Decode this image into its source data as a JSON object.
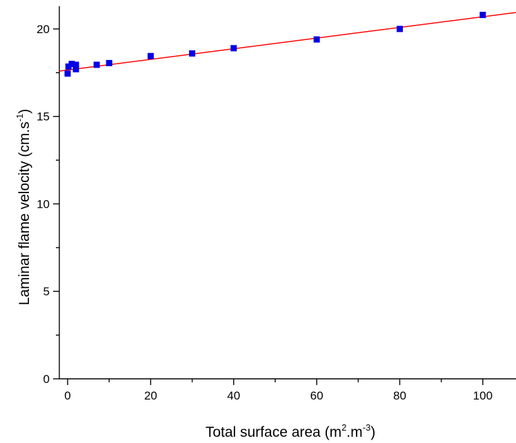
{
  "chart_data": {
    "type": "scatter",
    "title": "",
    "xlabel": {
      "base": "Total surface area (m",
      "sup1": "2",
      "mid": ".m",
      "sup2": "-3",
      "end": ")"
    },
    "ylabel": {
      "base": "Laminar flame velocity (cm.s",
      "sup": "-1",
      "end": ")"
    },
    "xlim": [
      -2,
      108
    ],
    "ylim": [
      0,
      21.3
    ],
    "x_ticks": [
      0,
      20,
      40,
      60,
      80,
      100
    ],
    "x_tick_labels": [
      "0",
      "20",
      "40",
      "60",
      "80",
      "100"
    ],
    "y_ticks": [
      0,
      5,
      10,
      15,
      20
    ],
    "y_tick_labels": [
      "0",
      "5",
      "10",
      "15",
      "20"
    ],
    "grid": false,
    "legend": "none",
    "series": [
      {
        "marker": "square",
        "color": "#0000e6",
        "points": [
          {
            "x": 0,
            "y": 17.45
          },
          {
            "x": 0.2,
            "y": 17.85
          },
          {
            "x": 1,
            "y": 18.0
          },
          {
            "x": 2,
            "y": 17.95
          },
          {
            "x": 2,
            "y": 17.7
          },
          {
            "x": 7,
            "y": 17.95
          },
          {
            "x": 10,
            "y": 18.05
          },
          {
            "x": 20,
            "y": 18.45
          },
          {
            "x": 30,
            "y": 18.6
          },
          {
            "x": 40,
            "y": 18.9
          },
          {
            "x": 60,
            "y": 19.4
          },
          {
            "x": 80,
            "y": 20.0
          },
          {
            "x": 100,
            "y": 20.8
          }
        ]
      }
    ],
    "fit_line": {
      "color": "#ff0000",
      "x": [
        -2,
        108
      ],
      "y": [
        17.59,
        20.94
      ]
    }
  }
}
